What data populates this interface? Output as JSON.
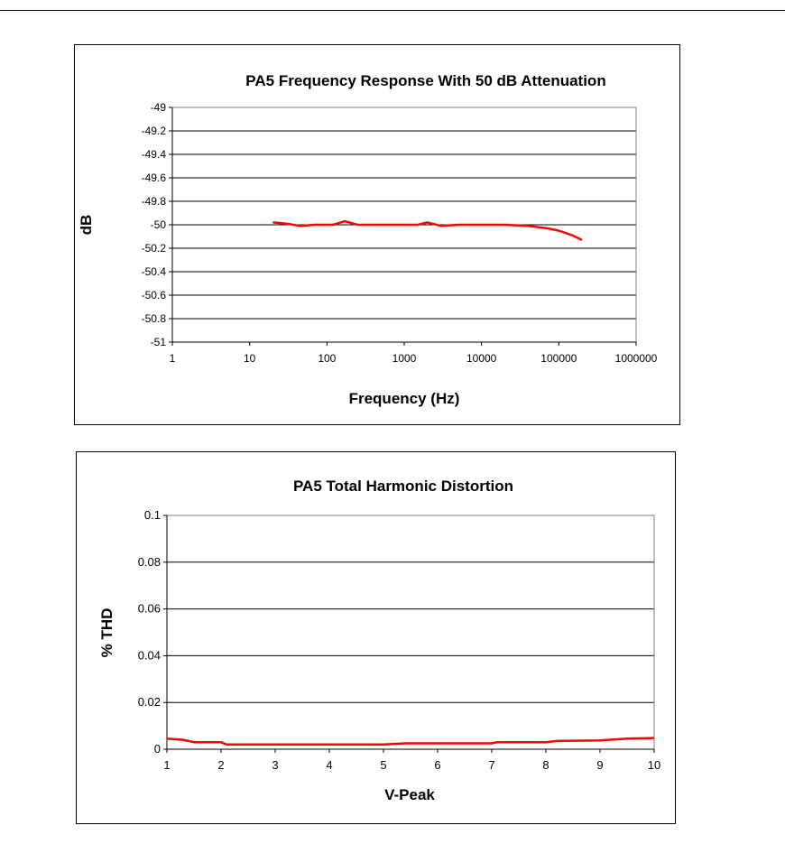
{
  "chart_data": [
    {
      "type": "line",
      "title": "PA5 Frequency Response With 50 dB Attenuation",
      "xlabel": "Frequency (Hz)",
      "ylabel": "dB",
      "xscale": "log",
      "xlim": [
        1,
        1000000
      ],
      "ylim": [
        -51,
        -49
      ],
      "x_tick_labels": [
        "1",
        "10",
        "100",
        "1000",
        "10000",
        "100000",
        "1000000"
      ],
      "y_tick_labels": [
        "-49",
        "-49.2",
        "-49.4",
        "-49.6",
        "-49.8",
        "-50",
        "-50.2",
        "-50.4",
        "-50.6",
        "-50.8",
        "-51"
      ],
      "grid": true,
      "legend": "none",
      "series": [
        {
          "name": "Response",
          "color": "#ff0000",
          "x": [
            20,
            30,
            45,
            70,
            120,
            170,
            250,
            400,
            700,
            1000,
            1500,
            2000,
            3000,
            5000,
            10000,
            20000,
            40000,
            70000,
            100000,
            150000,
            200000
          ],
          "y": [
            -49.98,
            -49.99,
            -50.01,
            -50.0,
            -50.0,
            -49.97,
            -50.0,
            -50.0,
            -50.0,
            -50.0,
            -50.0,
            -49.98,
            -50.01,
            -50.0,
            -50.0,
            -50.0,
            -50.01,
            -50.03,
            -50.05,
            -50.09,
            -50.13
          ]
        }
      ]
    },
    {
      "type": "line",
      "title": "PA5 Total Harmonic Distortion",
      "xlabel": "V-Peak",
      "ylabel": "% THD",
      "xlim": [
        1,
        10
      ],
      "ylim": [
        0,
        0.1
      ],
      "x_tick_labels": [
        "1",
        "2",
        "3",
        "4",
        "5",
        "6",
        "7",
        "8",
        "9",
        "10"
      ],
      "y_tick_labels": [
        "0.1",
        "0.08",
        "0.06",
        "0.04",
        "0.02",
        "0"
      ],
      "grid": true,
      "legend": "none",
      "series": [
        {
          "name": "THD",
          "color": "#ff0000",
          "x": [
            1,
            1.3,
            1.5,
            2,
            2.1,
            3,
            4,
            5,
            5.4,
            6,
            7,
            7.1,
            8,
            8.2,
            9,
            9.5,
            10
          ],
          "y": [
            0.0045,
            0.004,
            0.003,
            0.003,
            0.002,
            0.002,
            0.002,
            0.002,
            0.0025,
            0.0025,
            0.0025,
            0.003,
            0.003,
            0.0035,
            0.0038,
            0.0045,
            0.0048
          ]
        }
      ]
    }
  ]
}
